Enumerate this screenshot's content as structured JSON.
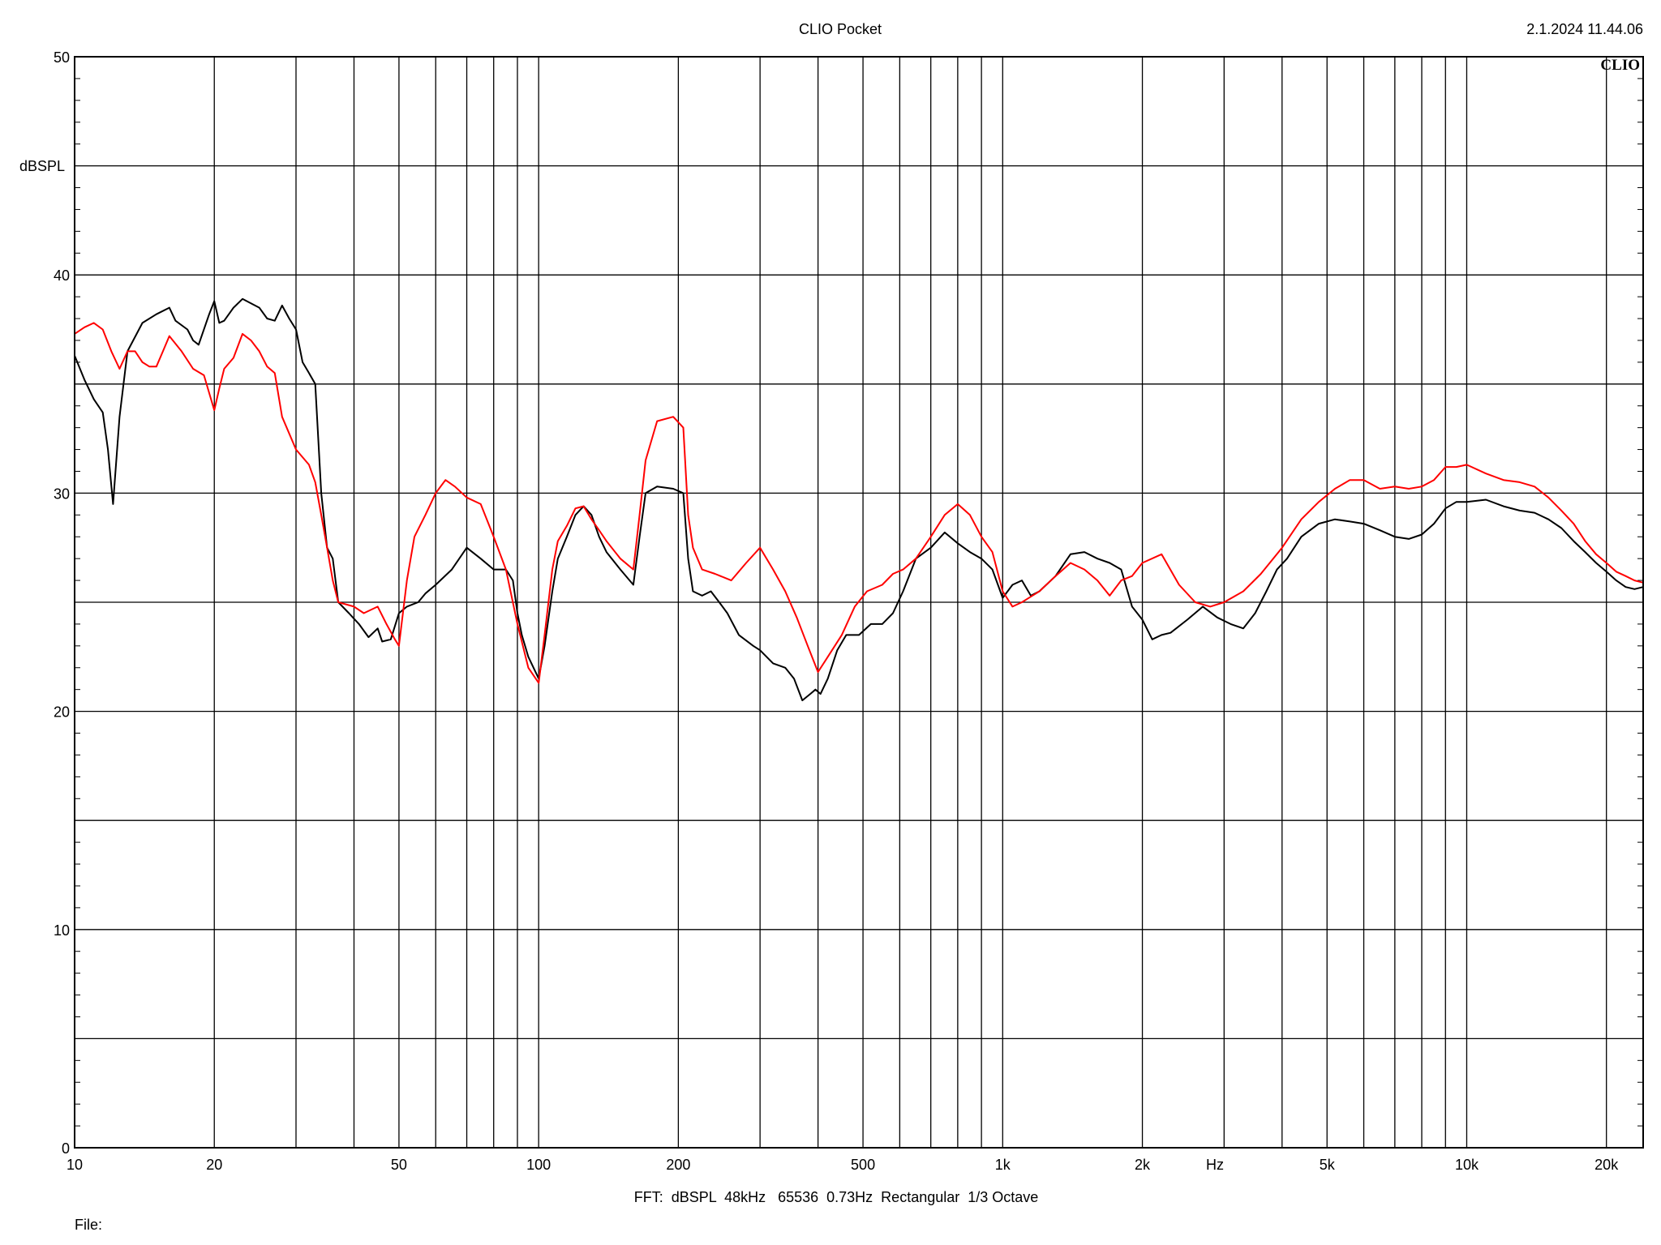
{
  "header": {
    "title": "CLIO Pocket",
    "timestamp": "2.1.2024 11.44.06",
    "logo": "CLIO"
  },
  "footer": {
    "settings": "FFT:  dBSPL  48kHz   65536  0.73Hz  Rectangular  1/3 Octave",
    "file_label": "File:"
  },
  "chart_data": {
    "type": "line",
    "xscale": "log",
    "xlim": [
      10,
      24000
    ],
    "ylim": [
      0,
      50
    ],
    "ylabel": "dBSPL",
    "xlabel": "Hz",
    "grid": true,
    "x_ticks": [
      {
        "value": 10,
        "label": "10"
      },
      {
        "value": 20,
        "label": "20"
      },
      {
        "value": 50,
        "label": "50"
      },
      {
        "value": 100,
        "label": "100"
      },
      {
        "value": 200,
        "label": "200"
      },
      {
        "value": 500,
        "label": "500"
      },
      {
        "value": 1000,
        "label": "1k"
      },
      {
        "value": 2000,
        "label": "2k"
      },
      {
        "value": 5000,
        "label": "5k"
      },
      {
        "value": 10000,
        "label": "10k"
      },
      {
        "value": 20000,
        "label": "20k"
      }
    ],
    "y_ticks": [
      {
        "value": 0,
        "label": "0"
      },
      {
        "value": 10,
        "label": "10"
      },
      {
        "value": 20,
        "label": "20"
      },
      {
        "value": 30,
        "label": "30"
      },
      {
        "value": 40,
        "label": "40"
      },
      {
        "value": 50,
        "label": "50"
      }
    ],
    "series": [
      {
        "color": "#000000",
        "points": [
          [
            10,
            36.3
          ],
          [
            10.5,
            35.2
          ],
          [
            11,
            34.3
          ],
          [
            11.5,
            33.7
          ],
          [
            11.8,
            32.0
          ],
          [
            12.1,
            29.5
          ],
          [
            12.5,
            33.5
          ],
          [
            13,
            36.5
          ],
          [
            14,
            37.8
          ],
          [
            15,
            38.2
          ],
          [
            16,
            38.5
          ],
          [
            16.5,
            37.9
          ],
          [
            17.5,
            37.5
          ],
          [
            18,
            37.0
          ],
          [
            18.5,
            36.8
          ],
          [
            19.5,
            38.2
          ],
          [
            20,
            38.8
          ],
          [
            20.5,
            37.8
          ],
          [
            21,
            37.9
          ],
          [
            22,
            38.5
          ],
          [
            23,
            38.9
          ],
          [
            25,
            38.5
          ],
          [
            26,
            38.0
          ],
          [
            27,
            37.9
          ],
          [
            28,
            38.6
          ],
          [
            29,
            38.0
          ],
          [
            30,
            37.5
          ],
          [
            31,
            36.0
          ],
          [
            32,
            35.5
          ],
          [
            33,
            35.0
          ],
          [
            34,
            30.0
          ],
          [
            35,
            27.5
          ],
          [
            36,
            27.0
          ],
          [
            37,
            25.0
          ],
          [
            39,
            24.5
          ],
          [
            41,
            24.0
          ],
          [
            43,
            23.4
          ],
          [
            45,
            23.8
          ],
          [
            46,
            23.2
          ],
          [
            48,
            23.3
          ],
          [
            50,
            24.5
          ],
          [
            52,
            24.8
          ],
          [
            55,
            25.0
          ],
          [
            57,
            25.4
          ],
          [
            60,
            25.8
          ],
          [
            65,
            26.5
          ],
          [
            70,
            27.5
          ],
          [
            75,
            27.0
          ],
          [
            80,
            26.5
          ],
          [
            85,
            26.5
          ],
          [
            88,
            26.0
          ],
          [
            90,
            24.5
          ],
          [
            92,
            23.5
          ],
          [
            95,
            22.5
          ],
          [
            100,
            21.5
          ],
          [
            103,
            23.0
          ],
          [
            107,
            25.5
          ],
          [
            110,
            27.0
          ],
          [
            115,
            28.0
          ],
          [
            120,
            29.0
          ],
          [
            125,
            29.4
          ],
          [
            130,
            29.0
          ],
          [
            135,
            28.0
          ],
          [
            140,
            27.3
          ],
          [
            150,
            26.5
          ],
          [
            160,
            25.8
          ],
          [
            165,
            28.0
          ],
          [
            170,
            30.0
          ],
          [
            180,
            30.3
          ],
          [
            195,
            30.2
          ],
          [
            205,
            30.0
          ],
          [
            210,
            27.0
          ],
          [
            215,
            25.5
          ],
          [
            225,
            25.3
          ],
          [
            235,
            25.5
          ],
          [
            245,
            25.0
          ],
          [
            255,
            24.5
          ],
          [
            270,
            23.5
          ],
          [
            290,
            23.0
          ],
          [
            300,
            22.8
          ],
          [
            320,
            22.2
          ],
          [
            340,
            22.0
          ],
          [
            355,
            21.5
          ],
          [
            370,
            20.5
          ],
          [
            385,
            20.8
          ],
          [
            395,
            21.0
          ],
          [
            405,
            20.8
          ],
          [
            420,
            21.5
          ],
          [
            440,
            22.8
          ],
          [
            460,
            23.5
          ],
          [
            490,
            23.5
          ],
          [
            520,
            24.0
          ],
          [
            550,
            24.0
          ],
          [
            580,
            24.5
          ],
          [
            610,
            25.5
          ],
          [
            650,
            27.0
          ],
          [
            700,
            27.5
          ],
          [
            750,
            28.2
          ],
          [
            800,
            27.7
          ],
          [
            850,
            27.3
          ],
          [
            900,
            27.0
          ],
          [
            950,
            26.5
          ],
          [
            1000,
            25.2
          ],
          [
            1050,
            25.8
          ],
          [
            1100,
            26.0
          ],
          [
            1150,
            25.3
          ],
          [
            1200,
            25.5
          ],
          [
            1300,
            26.2
          ],
          [
            1400,
            27.2
          ],
          [
            1500,
            27.3
          ],
          [
            1600,
            27.0
          ],
          [
            1700,
            26.8
          ],
          [
            1800,
            26.5
          ],
          [
            1900,
            24.8
          ],
          [
            2000,
            24.2
          ],
          [
            2100,
            23.3
          ],
          [
            2200,
            23.5
          ],
          [
            2300,
            23.6
          ],
          [
            2500,
            24.2
          ],
          [
            2700,
            24.8
          ],
          [
            2900,
            24.3
          ],
          [
            3100,
            24.0
          ],
          [
            3300,
            23.8
          ],
          [
            3500,
            24.5
          ],
          [
            3700,
            25.5
          ],
          [
            3900,
            26.5
          ],
          [
            4100,
            27.0
          ],
          [
            4400,
            28.0
          ],
          [
            4800,
            28.6
          ],
          [
            5200,
            28.8
          ],
          [
            5600,
            28.7
          ],
          [
            6000,
            28.6
          ],
          [
            6500,
            28.3
          ],
          [
            7000,
            28.0
          ],
          [
            7500,
            27.9
          ],
          [
            8000,
            28.1
          ],
          [
            8500,
            28.6
          ],
          [
            9000,
            29.3
          ],
          [
            9500,
            29.6
          ],
          [
            10000,
            29.6
          ],
          [
            11000,
            29.7
          ],
          [
            12000,
            29.4
          ],
          [
            13000,
            29.2
          ],
          [
            14000,
            29.1
          ],
          [
            15000,
            28.8
          ],
          [
            16000,
            28.4
          ],
          [
            17000,
            27.8
          ],
          [
            18000,
            27.3
          ],
          [
            19000,
            26.8
          ],
          [
            20000,
            26.4
          ],
          [
            21000,
            26.0
          ],
          [
            22000,
            25.7
          ],
          [
            23000,
            25.6
          ],
          [
            24000,
            25.7
          ]
        ]
      },
      {
        "color": "#ff0000",
        "points": [
          [
            10,
            37.3
          ],
          [
            10.5,
            37.6
          ],
          [
            11,
            37.8
          ],
          [
            11.5,
            37.5
          ],
          [
            12,
            36.5
          ],
          [
            12.5,
            35.7
          ],
          [
            13,
            36.5
          ],
          [
            13.5,
            36.5
          ],
          [
            14,
            36.0
          ],
          [
            14.5,
            35.8
          ],
          [
            15,
            35.8
          ],
          [
            15.5,
            36.5
          ],
          [
            16,
            37.2
          ],
          [
            17,
            36.5
          ],
          [
            18,
            35.7
          ],
          [
            19,
            35.4
          ],
          [
            20,
            33.8
          ],
          [
            20.5,
            34.8
          ],
          [
            21,
            35.7
          ],
          [
            22,
            36.2
          ],
          [
            23,
            37.3
          ],
          [
            24,
            37.0
          ],
          [
            25,
            36.5
          ],
          [
            26,
            35.8
          ],
          [
            27,
            35.5
          ],
          [
            28,
            33.5
          ],
          [
            30,
            32.0
          ],
          [
            32,
            31.3
          ],
          [
            33,
            30.5
          ],
          [
            34,
            29.0
          ],
          [
            35,
            27.5
          ],
          [
            36,
            26.0
          ],
          [
            37,
            25.0
          ],
          [
            40,
            24.8
          ],
          [
            42,
            24.5
          ],
          [
            45,
            24.8
          ],
          [
            47,
            24.0
          ],
          [
            49,
            23.3
          ],
          [
            50,
            23.0
          ],
          [
            52,
            26.0
          ],
          [
            54,
            28.0
          ],
          [
            57,
            29.0
          ],
          [
            60,
            30.0
          ],
          [
            63,
            30.6
          ],
          [
            66,
            30.3
          ],
          [
            70,
            29.8
          ],
          [
            75,
            29.5
          ],
          [
            80,
            28.0
          ],
          [
            85,
            26.5
          ],
          [
            90,
            24.0
          ],
          [
            95,
            22.0
          ],
          [
            100,
            21.3
          ],
          [
            103,
            23.5
          ],
          [
            107,
            26.5
          ],
          [
            110,
            27.8
          ],
          [
            115,
            28.5
          ],
          [
            120,
            29.3
          ],
          [
            125,
            29.4
          ],
          [
            130,
            28.8
          ],
          [
            135,
            28.3
          ],
          [
            140,
            27.8
          ],
          [
            150,
            27.0
          ],
          [
            160,
            26.5
          ],
          [
            165,
            29.0
          ],
          [
            170,
            31.5
          ],
          [
            180,
            33.3
          ],
          [
            195,
            33.5
          ],
          [
            205,
            33.0
          ],
          [
            210,
            29.0
          ],
          [
            215,
            27.5
          ],
          [
            225,
            26.5
          ],
          [
            240,
            26.3
          ],
          [
            260,
            26.0
          ],
          [
            280,
            26.8
          ],
          [
            300,
            27.5
          ],
          [
            320,
            26.5
          ],
          [
            340,
            25.5
          ],
          [
            360,
            24.3
          ],
          [
            380,
            23.0
          ],
          [
            400,
            21.8
          ],
          [
            420,
            22.5
          ],
          [
            450,
            23.5
          ],
          [
            480,
            24.8
          ],
          [
            510,
            25.5
          ],
          [
            550,
            25.8
          ],
          [
            580,
            26.3
          ],
          [
            610,
            26.5
          ],
          [
            650,
            27.0
          ],
          [
            700,
            28.0
          ],
          [
            750,
            29.0
          ],
          [
            800,
            29.5
          ],
          [
            850,
            29.0
          ],
          [
            900,
            28.0
          ],
          [
            950,
            27.3
          ],
          [
            1000,
            25.5
          ],
          [
            1050,
            24.8
          ],
          [
            1100,
            25.0
          ],
          [
            1200,
            25.5
          ],
          [
            1300,
            26.2
          ],
          [
            1400,
            26.8
          ],
          [
            1500,
            26.5
          ],
          [
            1600,
            26.0
          ],
          [
            1700,
            25.3
          ],
          [
            1800,
            26.0
          ],
          [
            1900,
            26.2
          ],
          [
            2000,
            26.8
          ],
          [
            2200,
            27.2
          ],
          [
            2400,
            25.8
          ],
          [
            2600,
            25.0
          ],
          [
            2800,
            24.8
          ],
          [
            3000,
            25.0
          ],
          [
            3300,
            25.5
          ],
          [
            3600,
            26.3
          ],
          [
            4000,
            27.5
          ],
          [
            4400,
            28.8
          ],
          [
            4800,
            29.6
          ],
          [
            5200,
            30.2
          ],
          [
            5600,
            30.6
          ],
          [
            6000,
            30.6
          ],
          [
            6500,
            30.2
          ],
          [
            7000,
            30.3
          ],
          [
            7500,
            30.2
          ],
          [
            8000,
            30.3
          ],
          [
            8500,
            30.6
          ],
          [
            9000,
            31.2
          ],
          [
            9500,
            31.2
          ],
          [
            10000,
            31.3
          ],
          [
            11000,
            30.9
          ],
          [
            12000,
            30.6
          ],
          [
            13000,
            30.5
          ],
          [
            14000,
            30.3
          ],
          [
            15000,
            29.8
          ],
          [
            16000,
            29.2
          ],
          [
            17000,
            28.6
          ],
          [
            18000,
            27.8
          ],
          [
            19000,
            27.2
          ],
          [
            20000,
            26.8
          ],
          [
            21000,
            26.4
          ],
          [
            22000,
            26.2
          ],
          [
            23000,
            26.0
          ],
          [
            24000,
            25.9
          ]
        ]
      }
    ]
  }
}
